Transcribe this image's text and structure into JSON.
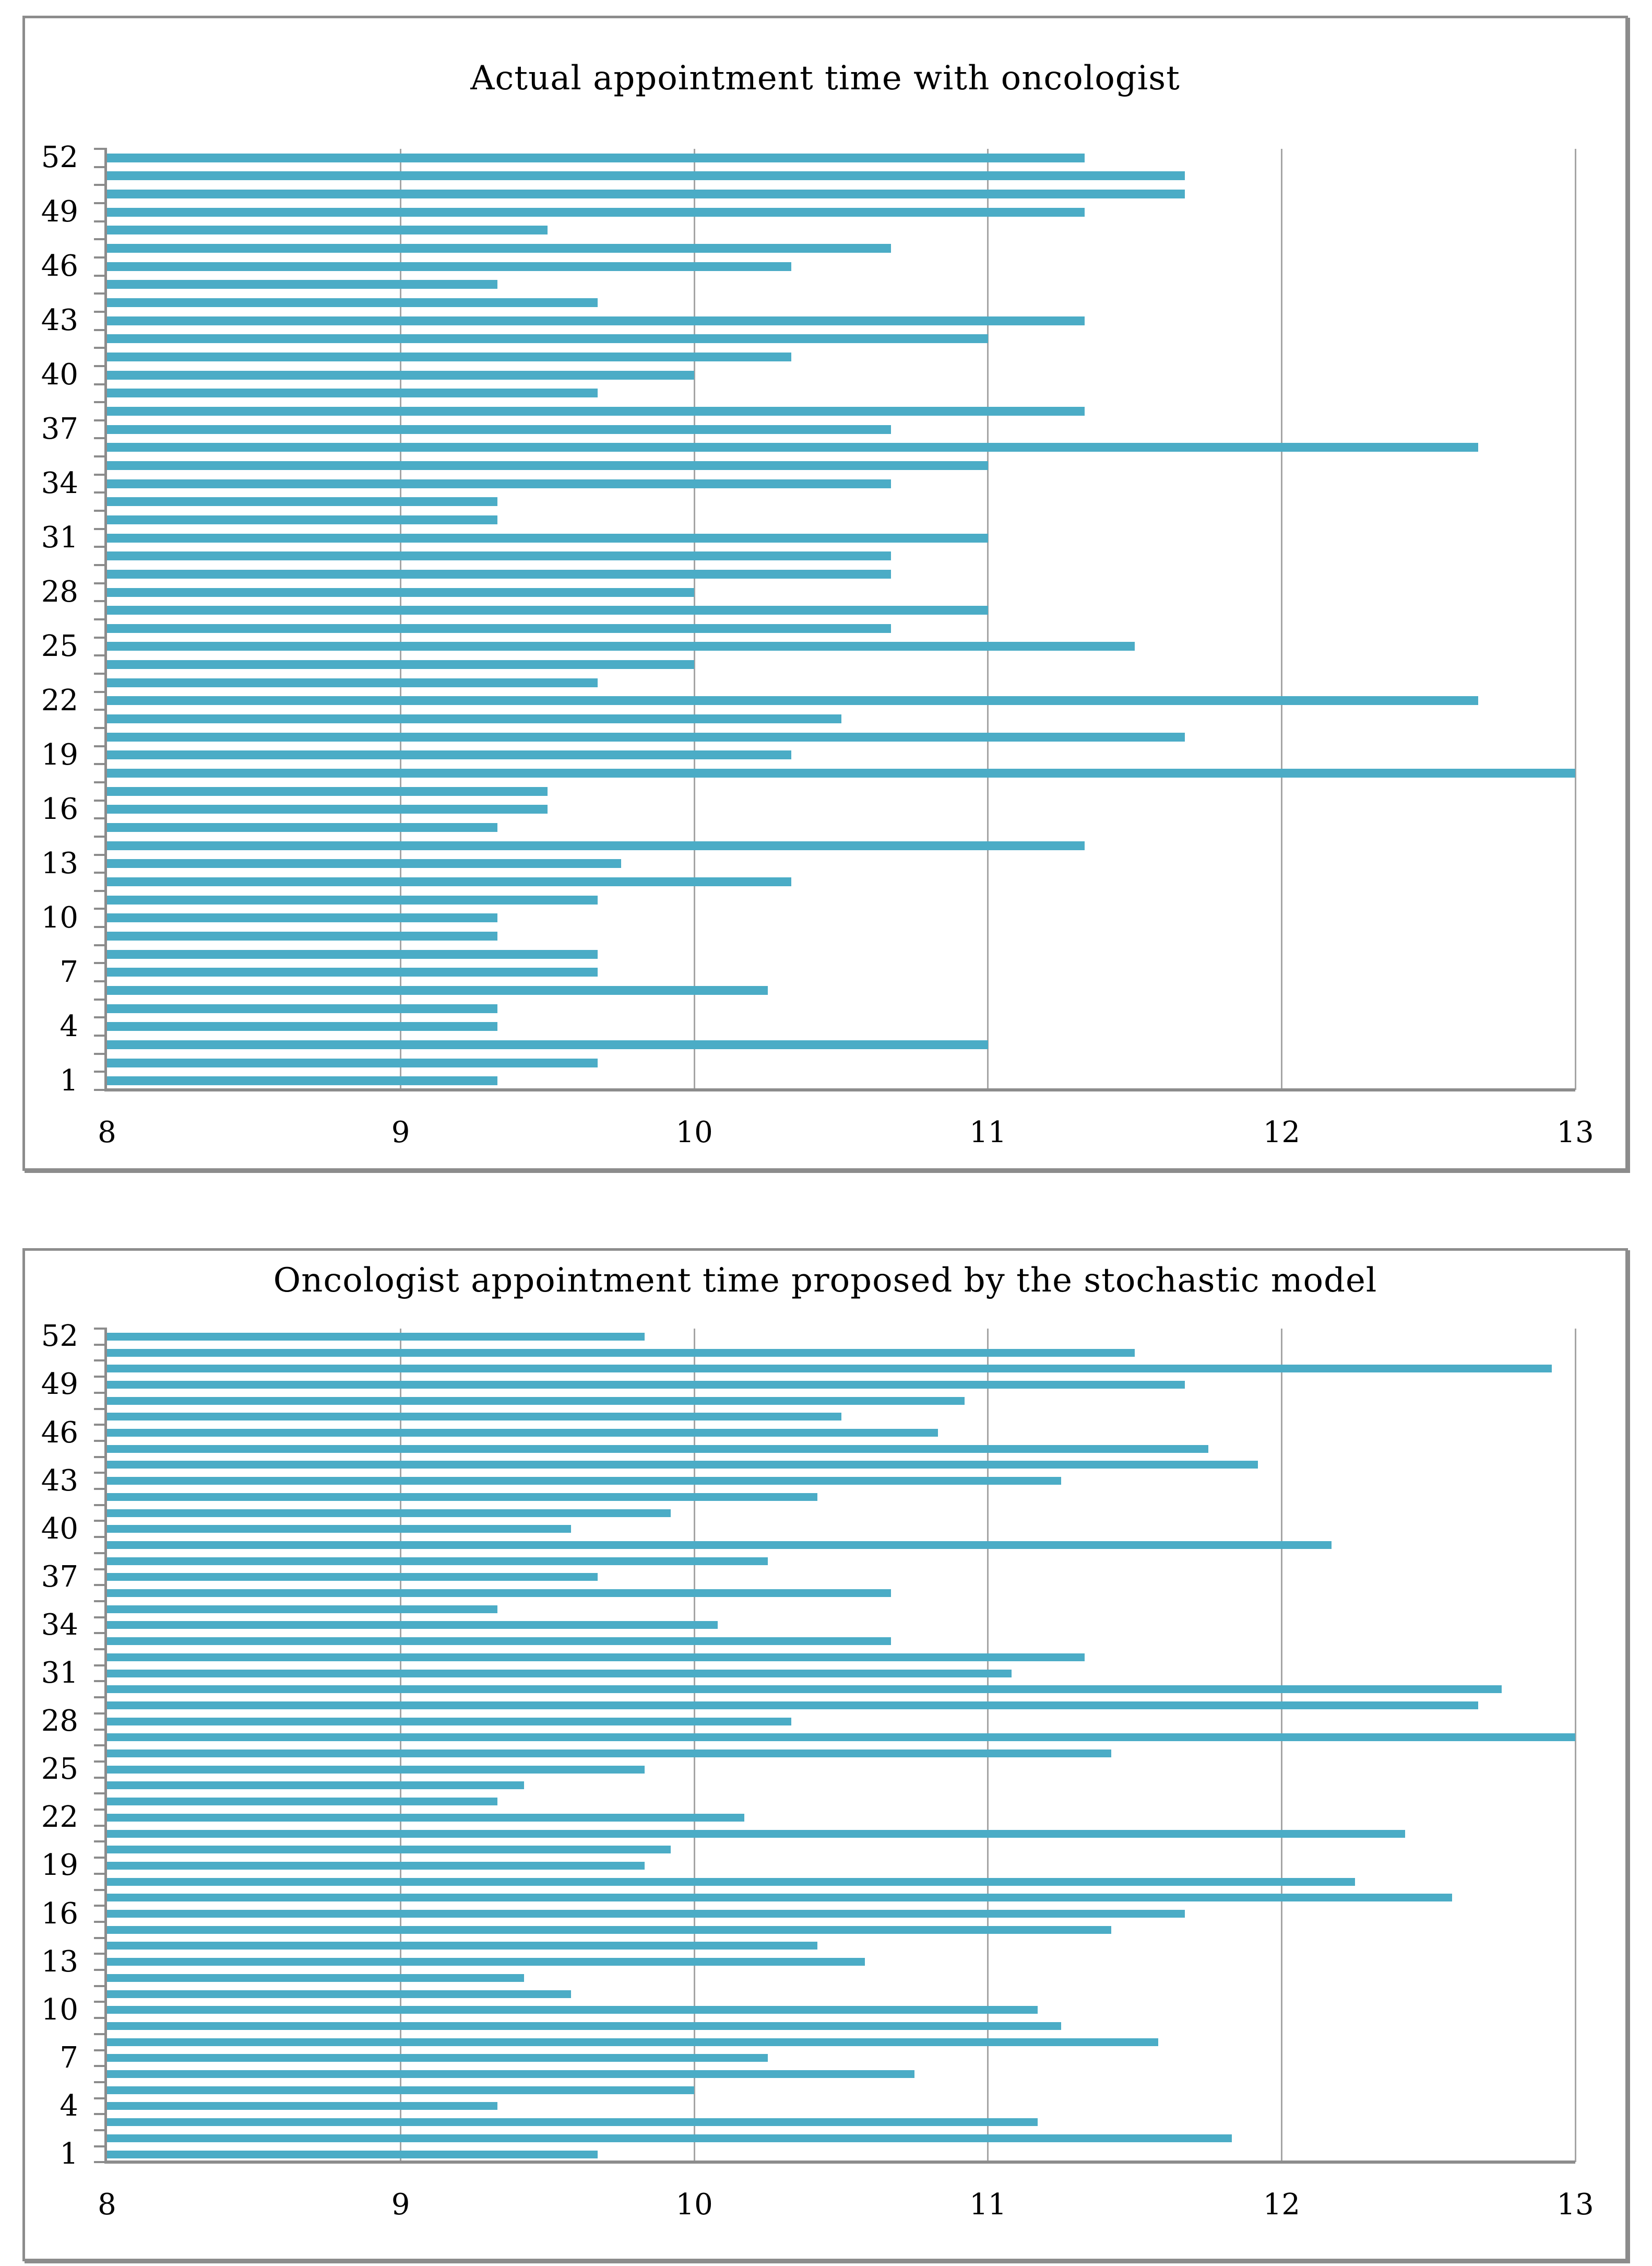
{
  "chart_data": [
    {
      "type": "bar",
      "orientation": "horizontal",
      "title": "Actual appointment time with oncologist",
      "xlabel": "",
      "ylabel": "",
      "categories": [
        1,
        2,
        3,
        4,
        5,
        6,
        7,
        8,
        9,
        10,
        11,
        12,
        13,
        14,
        15,
        16,
        17,
        18,
        19,
        20,
        21,
        22,
        23,
        24,
        25,
        26,
        27,
        28,
        29,
        30,
        31,
        32,
        33,
        34,
        35,
        36,
        37,
        38,
        39,
        40,
        41,
        42,
        43,
        44,
        45,
        46,
        47,
        48,
        49,
        50,
        51,
        52
      ],
      "values": [
        9.33,
        9.67,
        11.0,
        9.33,
        9.33,
        10.25,
        9.67,
        9.67,
        9.33,
        9.33,
        9.67,
        10.33,
        9.75,
        11.33,
        9.33,
        9.5,
        9.5,
        13.0,
        10.33,
        11.67,
        10.5,
        12.67,
        9.67,
        10.0,
        11.5,
        10.67,
        11.0,
        10.0,
        10.67,
        10.67,
        11.0,
        9.33,
        9.33,
        10.67,
        11.0,
        12.67,
        10.67,
        11.33,
        9.67,
        10.0,
        10.33,
        11.0,
        11.33,
        9.67,
        9.33,
        10.33,
        10.67,
        9.5,
        11.33,
        11.67,
        11.67,
        11.33
      ],
      "xlim": [
        8,
        13
      ],
      "x_tick_labels": [
        "8",
        "9",
        "10",
        "11",
        "12",
        "13"
      ],
      "y_tick_labels": [
        "52",
        "49",
        "46",
        "43",
        "40",
        "37",
        "34",
        "31",
        "28",
        "25",
        "22",
        "19",
        "16",
        "13",
        "10",
        "7",
        "4",
        "1"
      ],
      "y_label_interval": 3,
      "grid": "vertical",
      "legend": "none",
      "bar_color": "#4BACC6"
    },
    {
      "type": "bar",
      "orientation": "horizontal",
      "title": "Oncologist appointment time proposed by the stochastic model",
      "xlabel": "",
      "ylabel": "",
      "categories": [
        1,
        2,
        3,
        4,
        5,
        6,
        7,
        8,
        9,
        10,
        11,
        12,
        13,
        14,
        15,
        16,
        17,
        18,
        19,
        20,
        21,
        22,
        23,
        24,
        25,
        26,
        27,
        28,
        29,
        30,
        31,
        32,
        33,
        34,
        35,
        36,
        37,
        38,
        39,
        40,
        41,
        42,
        43,
        44,
        45,
        46,
        47,
        48,
        49,
        50,
        51,
        52
      ],
      "values": [
        9.67,
        11.83,
        11.17,
        9.33,
        10.0,
        10.75,
        10.25,
        11.58,
        11.25,
        11.17,
        9.58,
        9.42,
        10.58,
        10.42,
        11.42,
        11.67,
        12.58,
        12.25,
        9.83,
        9.92,
        12.42,
        10.17,
        9.33,
        9.42,
        9.83,
        11.42,
        13.0,
        10.33,
        12.67,
        12.75,
        11.08,
        11.33,
        10.67,
        10.08,
        9.33,
        10.67,
        9.67,
        10.25,
        12.17,
        9.58,
        9.92,
        10.42,
        11.25,
        11.92,
        11.75,
        10.83,
        10.5,
        10.92,
        11.67,
        12.92,
        11.5,
        9.83
      ],
      "xlim": [
        8,
        13
      ],
      "x_tick_labels": [
        "8",
        "9",
        "10",
        "11",
        "12",
        "13"
      ],
      "y_tick_labels": [
        "52",
        "49",
        "46",
        "43",
        "40",
        "37",
        "34",
        "31",
        "28",
        "25",
        "22",
        "19",
        "16",
        "13",
        "10",
        "7",
        "4",
        "1"
      ],
      "y_label_interval": 3,
      "grid": "vertical",
      "legend": "none",
      "bar_color": "#4BACC6"
    }
  ],
  "styles": {
    "bar_color": "#4BACC6",
    "gridline_color": "#A5A5A5",
    "axis_color": "#8C8C8C",
    "panel_border_color": "#8C8C8C",
    "text_color": "#000000",
    "background": "#FFFFFF"
  }
}
